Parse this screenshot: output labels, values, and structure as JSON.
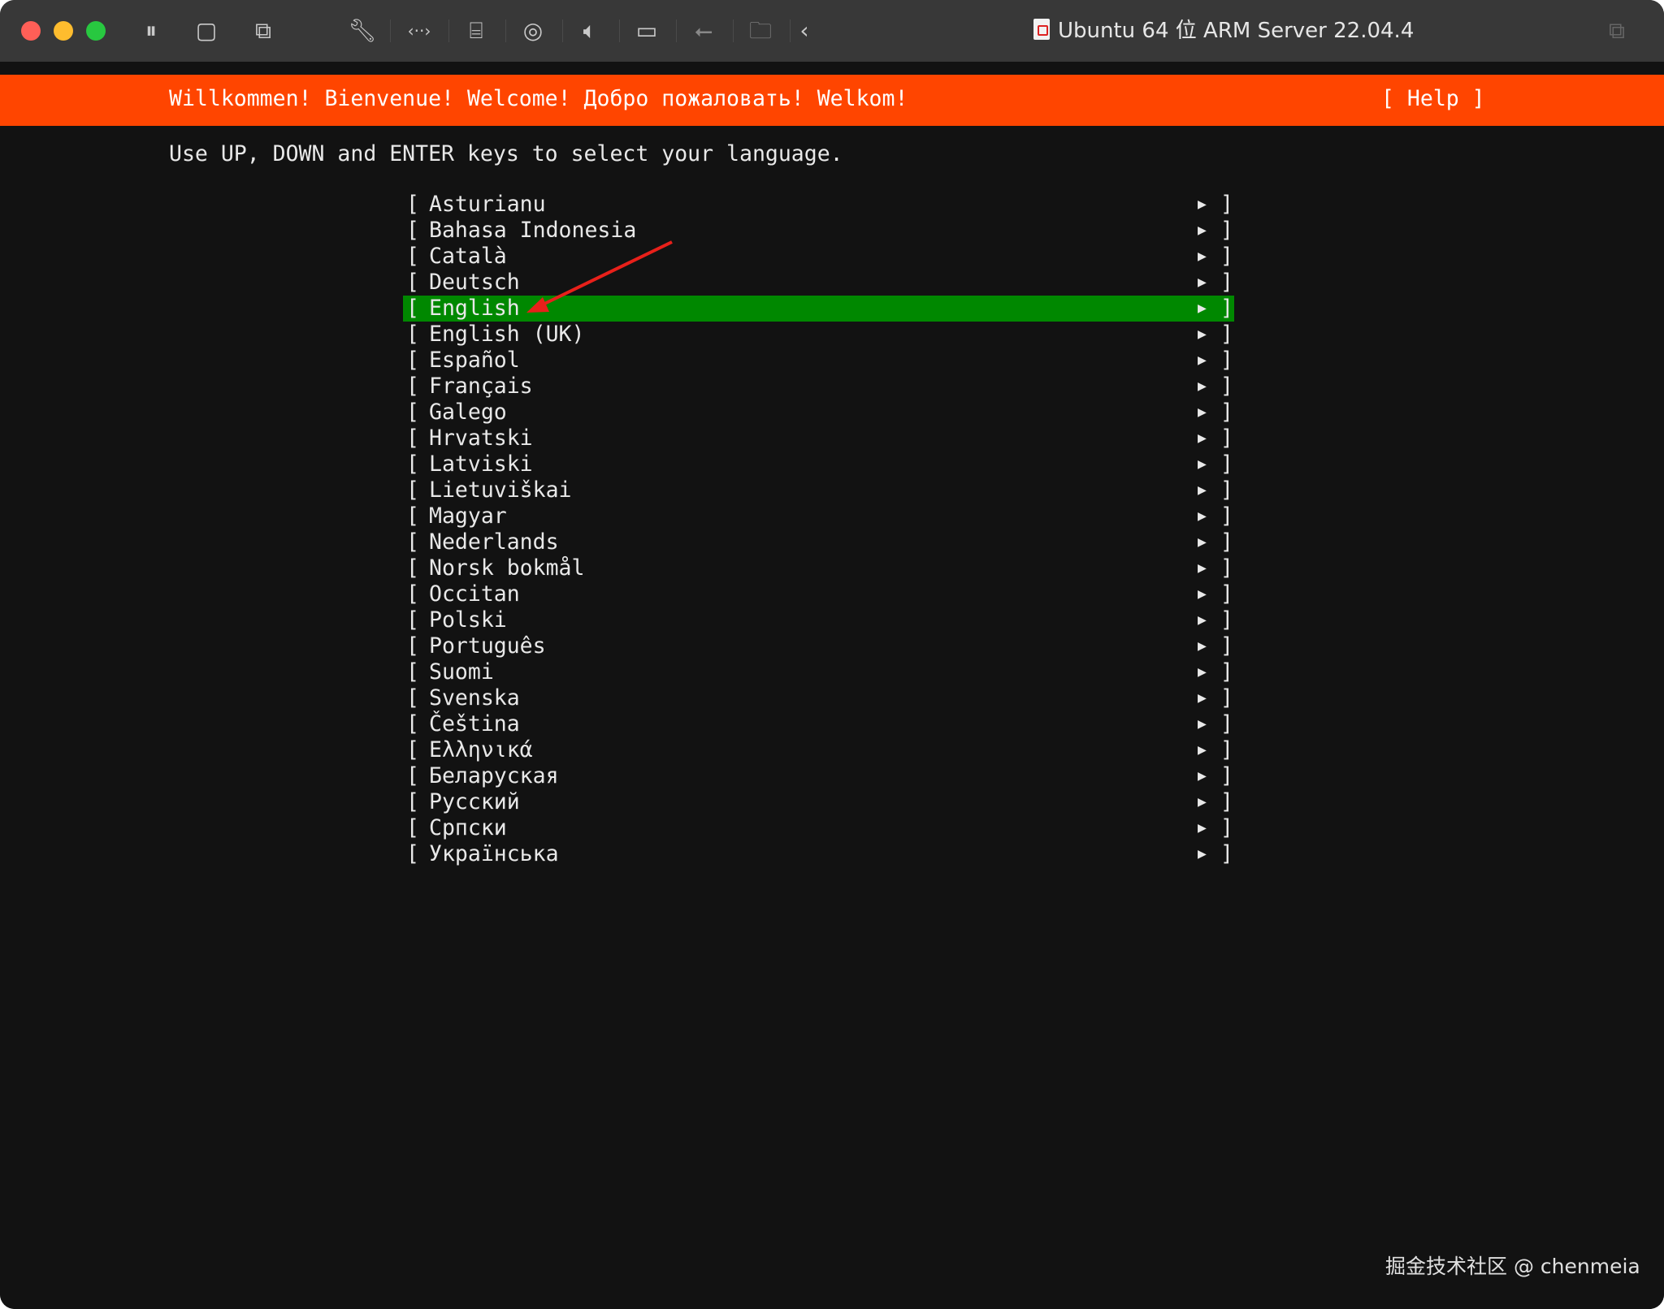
{
  "window": {
    "title": "Ubuntu 64 位 ARM Server 22.04.4",
    "traffic_colors": {
      "close": "#ff5f57",
      "minimize": "#febc2e",
      "zoom": "#28c840"
    },
    "toolbar_icons": [
      "pause-icon",
      "stop-icon",
      "snapshot-icon",
      "wrench-icon",
      "network-icon",
      "disk-icon",
      "cd-icon",
      "sound-icon",
      "camera-icon",
      "usb-icon",
      "shared-folder-icon",
      "back-chevron-icon"
    ]
  },
  "terminal": {
    "banner_text": "Willkommen! Bienvenue! Welcome! Добро пожаловать! Welkom!",
    "help_label": "[ Help ]",
    "instruction": "Use UP, DOWN and ENTER keys to select your language.",
    "banner_color": "#ff4500",
    "selected_color": "#008800",
    "selected_index": 4,
    "languages": [
      "Asturianu",
      "Bahasa Indonesia",
      "Català",
      "Deutsch",
      "English",
      "English (UK)",
      "Español",
      "Français",
      "Galego",
      "Hrvatski",
      "Latviski",
      "Lietuviškai",
      "Magyar",
      "Nederlands",
      "Norsk bokmål",
      "Occitan",
      "Polski",
      "Português",
      "Suomi",
      "Svenska",
      "Čeština",
      "Ελληνικά",
      "Беларуская",
      "Русский",
      "Српски",
      "Українська"
    ],
    "bracket_open": "[",
    "bracket_close": "]",
    "arrow_glyph": "▶"
  },
  "annotation_arrow_color": "#e8201a",
  "watermark": "掘金技术社区 @ chenmeia"
}
